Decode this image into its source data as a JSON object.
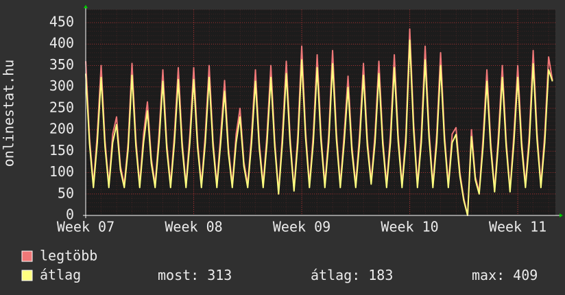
{
  "chart_data": {
    "type": "line",
    "y_label": "onlinestat.hu",
    "xlim": [
      0,
      30.44
    ],
    "xticks": [
      {
        "value": 0,
        "label": "Week 07"
      },
      {
        "value": 7,
        "label": "Week 08"
      },
      {
        "value": 14,
        "label": "Week 09"
      },
      {
        "value": 21,
        "label": "Week 10"
      },
      {
        "value": 28,
        "label": "Week 11"
      }
    ],
    "ylim": [
      0,
      450
    ],
    "yticks": [
      0,
      50,
      100,
      150,
      200,
      250,
      300,
      350,
      400,
      450
    ],
    "grid": true,
    "x": [
      0,
      0.25,
      0.5,
      0.75,
      1,
      1.25,
      1.5,
      1.75,
      2,
      2.25,
      2.5,
      2.75,
      3,
      3.25,
      3.5,
      3.75,
      4,
      4.25,
      4.5,
      4.75,
      5,
      5.25,
      5.5,
      5.75,
      6,
      6.25,
      6.5,
      6.75,
      7,
      7.25,
      7.5,
      7.75,
      8,
      8.25,
      8.5,
      8.75,
      9,
      9.25,
      9.5,
      9.75,
      10,
      10.25,
      10.5,
      10.75,
      11,
      11.25,
      11.5,
      11.75,
      12,
      12.25,
      12.5,
      12.75,
      13,
      13.25,
      13.5,
      13.75,
      14,
      14.25,
      14.5,
      14.75,
      15,
      15.25,
      15.5,
      15.75,
      16,
      16.25,
      16.5,
      16.75,
      17,
      17.25,
      17.5,
      17.75,
      18,
      18.25,
      18.5,
      18.75,
      19,
      19.25,
      19.5,
      19.75,
      20,
      20.25,
      20.5,
      20.75,
      21,
      21.25,
      21.5,
      21.75,
      22,
      22.25,
      22.5,
      22.75,
      23,
      23.25,
      23.5,
      23.75,
      24,
      24.25,
      24.5,
      24.75,
      25,
      25.25,
      25.5,
      25.75,
      26,
      26.25,
      26.5,
      26.75,
      27,
      27.25,
      27.5,
      27.75,
      28,
      28.25,
      28.5,
      28.75,
      29,
      29.25,
      29.5,
      29.75,
      30,
      30.25
    ],
    "series": [
      {
        "name": "legtöbb",
        "color": "#f07878",
        "values": [
          360,
          180,
          72,
          190,
          350,
          175,
          72,
          190,
          230,
          115,
          72,
          170,
          355,
          178,
          72,
          190,
          265,
          133,
          72,
          190,
          340,
          170,
          72,
          190,
          345,
          173,
          72,
          190,
          345,
          173,
          72,
          190,
          350,
          175,
          72,
          190,
          315,
          158,
          72,
          190,
          250,
          125,
          72,
          190,
          340,
          170,
          72,
          190,
          350,
          175,
          55,
          190,
          360,
          180,
          62,
          190,
          395,
          198,
          72,
          190,
          375,
          188,
          72,
          190,
          385,
          193,
          72,
          190,
          325,
          163,
          72,
          190,
          355,
          178,
          80,
          190,
          360,
          180,
          72,
          190,
          375,
          188,
          72,
          190,
          435,
          218,
          72,
          190,
          395,
          198,
          72,
          190,
          380,
          190,
          72,
          190,
          205,
          100,
          40,
          0,
          200,
          90,
          55,
          180,
          340,
          170,
          60,
          190,
          350,
          175,
          60,
          190,
          350,
          175,
          72,
          190,
          385,
          193,
          72,
          190,
          370,
          315
        ]
      },
      {
        "name": "átlag",
        "color": "#ffff80",
        "values": [
          331,
          166,
          65,
          170,
          322,
          161,
          65,
          170,
          212,
          106,
          65,
          155,
          327,
          163,
          65,
          170,
          244,
          122,
          65,
          170,
          313,
          156,
          65,
          170,
          317,
          159,
          65,
          170,
          317,
          159,
          65,
          170,
          322,
          161,
          65,
          170,
          290,
          145,
          65,
          170,
          230,
          115,
          65,
          170,
          313,
          156,
          65,
          170,
          322,
          161,
          50,
          170,
          331,
          166,
          57,
          170,
          363,
          182,
          65,
          170,
          345,
          173,
          65,
          170,
          354,
          177,
          65,
          170,
          299,
          150,
          65,
          170,
          327,
          163,
          73,
          170,
          331,
          166,
          65,
          170,
          345,
          173,
          65,
          170,
          409,
          200,
          65,
          170,
          363,
          182,
          65,
          170,
          350,
          175,
          65,
          170,
          189,
          92,
          35,
          0,
          184,
          83,
          50,
          160,
          313,
          156,
          55,
          170,
          322,
          161,
          55,
          170,
          322,
          161,
          65,
          170,
          354,
          177,
          65,
          170,
          340,
          313
        ]
      }
    ],
    "legend_stats": [
      {
        "label": "most:",
        "value": 313
      },
      {
        "label": "átlag:",
        "value": 183
      },
      {
        "label": "max:",
        "value": 409
      }
    ]
  }
}
